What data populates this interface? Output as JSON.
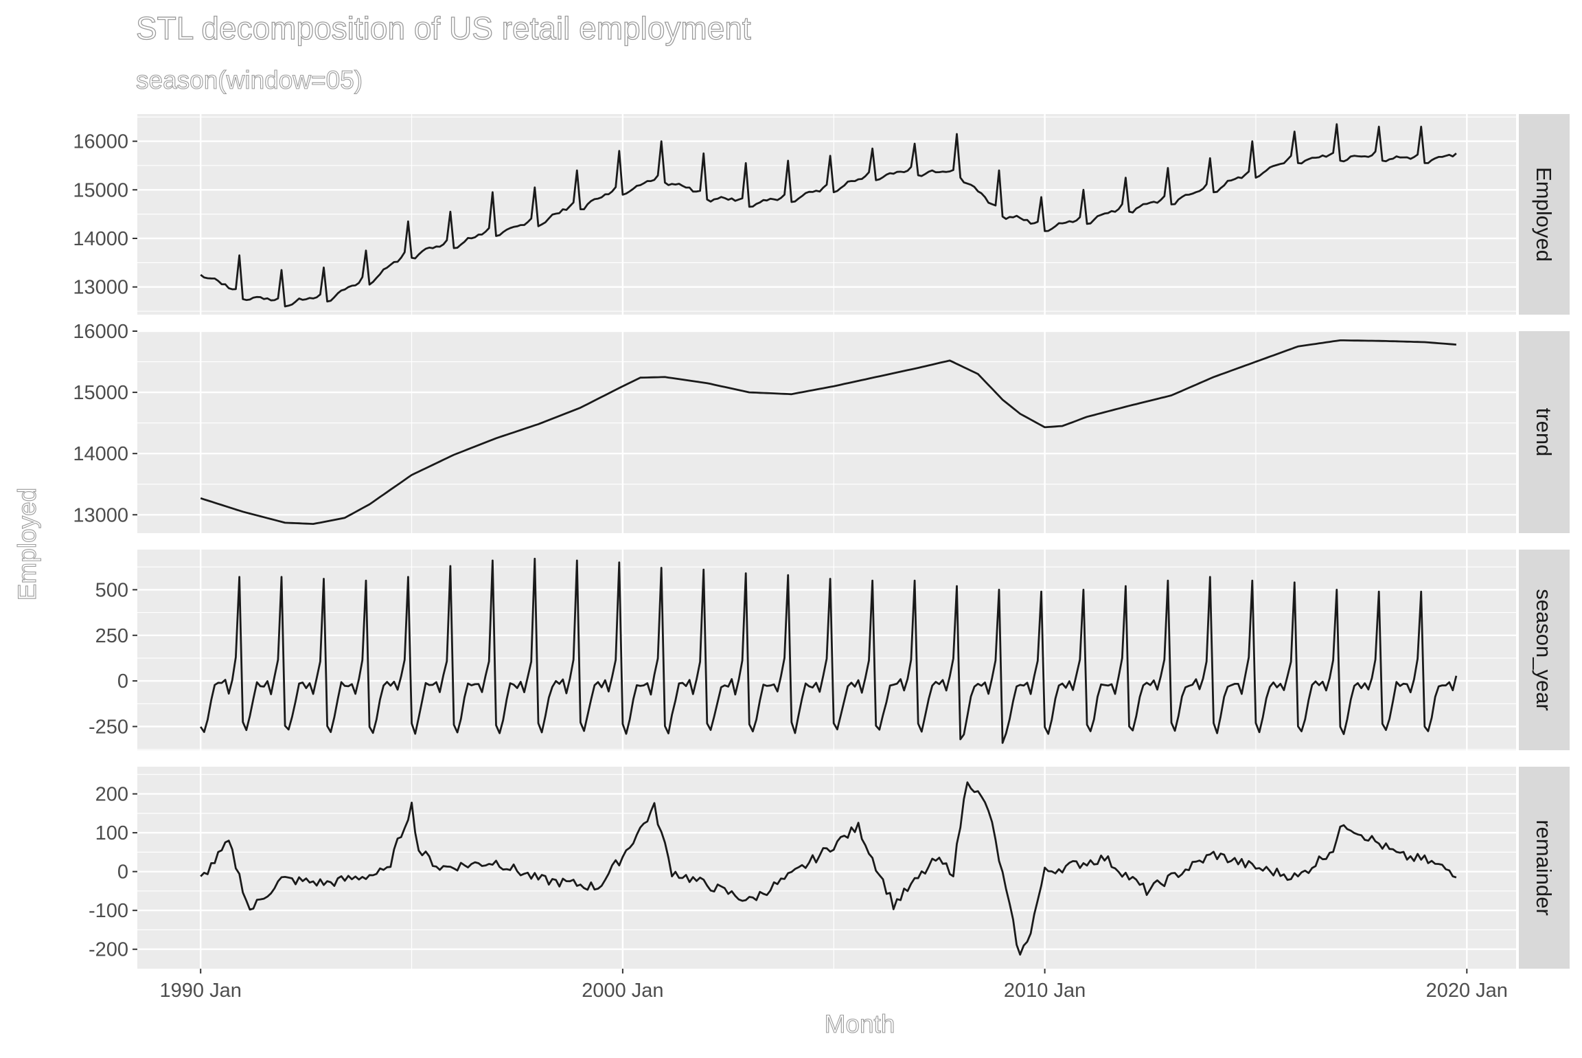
{
  "chart_data": {
    "type": "line",
    "title": "STL decomposition of US retail employment",
    "subtitle": "season(window=05)",
    "xlabel": "Month",
    "ylabel": "Employed",
    "x_ticks": [
      "1990 Jan",
      "2000 Jan",
      "2010 Jan",
      "2020 Jan"
    ],
    "x_range": [
      "1988-07",
      "2021-03"
    ],
    "grid": true,
    "panels": [
      {
        "strip": "Employed",
        "ylim": [
          12430,
          16560
        ],
        "yticks": [
          "13000",
          "14000",
          "15000",
          "16000"
        ],
        "yvalues": [
          13000,
          14000,
          15000,
          16000
        ],
        "series": [
          {
            "x": "1990-01",
            "y": 13250
          },
          {
            "x": "1990-12",
            "y": 13650
          },
          {
            "x": "1991-01",
            "y": 12750
          },
          {
            "x": "1991-12",
            "y": 13350
          },
          {
            "x": "1992-01",
            "y": 12600
          },
          {
            "x": "1992-12",
            "y": 13400
          },
          {
            "x": "1993-01",
            "y": 12700
          },
          {
            "x": "1993-12",
            "y": 13750
          },
          {
            "x": "1994-01",
            "y": 13050
          },
          {
            "x": "1994-12",
            "y": 14350
          },
          {
            "x": "1995-01",
            "y": 13600
          },
          {
            "x": "1995-12",
            "y": 14550
          },
          {
            "x": "1996-01",
            "y": 13800
          },
          {
            "x": "1996-12",
            "y": 14950
          },
          {
            "x": "1997-01",
            "y": 14050
          },
          {
            "x": "1997-12",
            "y": 15050
          },
          {
            "x": "1998-01",
            "y": 14250
          },
          {
            "x": "1998-12",
            "y": 15400
          },
          {
            "x": "1999-01",
            "y": 14600
          },
          {
            "x": "1999-12",
            "y": 15800
          },
          {
            "x": "2000-01",
            "y": 14900
          },
          {
            "x": "2000-12",
            "y": 16000
          },
          {
            "x": "2001-01",
            "y": 15150
          },
          {
            "x": "2001-12",
            "y": 15750
          },
          {
            "x": "2002-01",
            "y": 14800
          },
          {
            "x": "2002-12",
            "y": 15550
          },
          {
            "x": "2003-01",
            "y": 14650
          },
          {
            "x": "2003-12",
            "y": 15600
          },
          {
            "x": "2004-01",
            "y": 14750
          },
          {
            "x": "2004-12",
            "y": 15700
          },
          {
            "x": "2005-01",
            "y": 14950
          },
          {
            "x": "2005-12",
            "y": 15850
          },
          {
            "x": "2006-01",
            "y": 15200
          },
          {
            "x": "2006-12",
            "y": 15950
          },
          {
            "x": "2007-01",
            "y": 15300
          },
          {
            "x": "2007-12",
            "y": 16150
          },
          {
            "x": "2008-01",
            "y": 15250
          },
          {
            "x": "2008-12",
            "y": 15400
          },
          {
            "x": "2009-01",
            "y": 14450
          },
          {
            "x": "2009-12",
            "y": 14850
          },
          {
            "x": "2010-01",
            "y": 14150
          },
          {
            "x": "2010-12",
            "y": 15000
          },
          {
            "x": "2011-01",
            "y": 14300
          },
          {
            "x": "2011-12",
            "y": 15250
          },
          {
            "x": "2012-01",
            "y": 14550
          },
          {
            "x": "2012-12",
            "y": 15450
          },
          {
            "x": "2013-01",
            "y": 14700
          },
          {
            "x": "2013-12",
            "y": 15650
          },
          {
            "x": "2014-01",
            "y": 14950
          },
          {
            "x": "2014-12",
            "y": 16000
          },
          {
            "x": "2015-01",
            "y": 15250
          },
          {
            "x": "2015-12",
            "y": 16200
          },
          {
            "x": "2016-01",
            "y": 15550
          },
          {
            "x": "2016-12",
            "y": 16350
          },
          {
            "x": "2017-01",
            "y": 15600
          },
          {
            "x": "2017-12",
            "y": 16300
          },
          {
            "x": "2018-01",
            "y": 15600
          },
          {
            "x": "2018-12",
            "y": 16300
          },
          {
            "x": "2019-01",
            "y": 15550
          },
          {
            "x": "2019-10",
            "y": 15600
          }
        ]
      },
      {
        "strip": "trend",
        "ylim": [
          12700,
          16000
        ],
        "yticks": [
          "13000",
          "14000",
          "15000",
          "16000"
        ],
        "yvalues": [
          13000,
          14000,
          15000,
          16000
        ],
        "series": [
          {
            "x": "1990-01",
            "y": 13270
          },
          {
            "x": "1991-01",
            "y": 13050
          },
          {
            "x": "1992-01",
            "y": 12870
          },
          {
            "x": "1992-09",
            "y": 12850
          },
          {
            "x": "1993-06",
            "y": 12950
          },
          {
            "x": "1994-01",
            "y": 13170
          },
          {
            "x": "1995-01",
            "y": 13650
          },
          {
            "x": "1996-01",
            "y": 13980
          },
          {
            "x": "1997-01",
            "y": 14250
          },
          {
            "x": "1998-01",
            "y": 14480
          },
          {
            "x": "1999-01",
            "y": 14750
          },
          {
            "x": "2000-01",
            "y": 15100
          },
          {
            "x": "2000-06",
            "y": 15240
          },
          {
            "x": "2001-01",
            "y": 15250
          },
          {
            "x": "2002-01",
            "y": 15150
          },
          {
            "x": "2003-01",
            "y": 15000
          },
          {
            "x": "2004-01",
            "y": 14970
          },
          {
            "x": "2005-01",
            "y": 15100
          },
          {
            "x": "2006-01",
            "y": 15250
          },
          {
            "x": "2007-01",
            "y": 15400
          },
          {
            "x": "2007-10",
            "y": 15520
          },
          {
            "x": "2008-06",
            "y": 15300
          },
          {
            "x": "2009-01",
            "y": 14880
          },
          {
            "x": "2009-06",
            "y": 14650
          },
          {
            "x": "2010-01",
            "y": 14430
          },
          {
            "x": "2010-06",
            "y": 14450
          },
          {
            "x": "2011-01",
            "y": 14600
          },
          {
            "x": "2012-01",
            "y": 14780
          },
          {
            "x": "2013-01",
            "y": 14950
          },
          {
            "x": "2014-01",
            "y": 15250
          },
          {
            "x": "2015-01",
            "y": 15500
          },
          {
            "x": "2016-01",
            "y": 15750
          },
          {
            "x": "2017-01",
            "y": 15850
          },
          {
            "x": "2018-01",
            "y": 15840
          },
          {
            "x": "2019-01",
            "y": 15820
          },
          {
            "x": "2019-10",
            "y": 15780
          }
        ]
      },
      {
        "strip": "season_year",
        "ylim": [
          -380,
          720
        ],
        "yticks": [
          "-250",
          "0",
          "250",
          "500"
        ],
        "yvalues": [
          -250,
          0,
          250,
          500
        ],
        "peaks": [
          {
            "x": "1990-12",
            "y": 570
          },
          {
            "x": "1991-12",
            "y": 570
          },
          {
            "x": "1992-12",
            "y": 560
          },
          {
            "x": "1993-12",
            "y": 550
          },
          {
            "x": "1994-12",
            "y": 570
          },
          {
            "x": "1995-12",
            "y": 630
          },
          {
            "x": "1996-12",
            "y": 660
          },
          {
            "x": "1997-12",
            "y": 670
          },
          {
            "x": "1998-12",
            "y": 660
          },
          {
            "x": "1999-12",
            "y": 650
          },
          {
            "x": "2000-12",
            "y": 620
          },
          {
            "x": "2001-12",
            "y": 610
          },
          {
            "x": "2002-12",
            "y": 590
          },
          {
            "x": "2003-12",
            "y": 580
          },
          {
            "x": "2004-12",
            "y": 560
          },
          {
            "x": "2005-12",
            "y": 550
          },
          {
            "x": "2006-12",
            "y": 550
          },
          {
            "x": "2007-12",
            "y": 520
          },
          {
            "x": "2008-12",
            "y": 500
          },
          {
            "x": "2009-12",
            "y": 490
          },
          {
            "x": "2010-12",
            "y": 500
          },
          {
            "x": "2011-12",
            "y": 520
          },
          {
            "x": "2012-12",
            "y": 550
          },
          {
            "x": "2013-12",
            "y": 570
          },
          {
            "x": "2014-12",
            "y": 550
          },
          {
            "x": "2015-12",
            "y": 540
          },
          {
            "x": "2016-12",
            "y": 500
          },
          {
            "x": "2017-12",
            "y": 490
          },
          {
            "x": "2018-12",
            "y": 490
          }
        ],
        "troughs": [
          {
            "x": "1990-02",
            "y": -280
          },
          {
            "x": "1995-02",
            "y": -290
          },
          {
            "x": "2000-02",
            "y": -290
          },
          {
            "x": "2008-01",
            "y": -320
          },
          {
            "x": "2009-01",
            "y": -340
          },
          {
            "x": "2019-01",
            "y": -250
          }
        ]
      },
      {
        "strip": "remainder",
        "ylim": [
          -250,
          270
        ],
        "yticks": [
          "-200",
          "-100",
          "0",
          "100",
          "200"
        ],
        "yvalues": [
          -200,
          -100,
          0,
          100,
          200
        ],
        "series": [
          {
            "x": "1990-01",
            "y": -20
          },
          {
            "x": "1990-09",
            "y": 75
          },
          {
            "x": "1991-03",
            "y": -100
          },
          {
            "x": "1991-12",
            "y": -20
          },
          {
            "x": "1993-01",
            "y": -30
          },
          {
            "x": "1994-06",
            "y": 0
          },
          {
            "x": "1995-01",
            "y": 170
          },
          {
            "x": "1995-03",
            "y": 55
          },
          {
            "x": "1995-09",
            "y": 10
          },
          {
            "x": "1997-01",
            "y": 25
          },
          {
            "x": "1998-01",
            "y": -20
          },
          {
            "x": "1999-06",
            "y": -40
          },
          {
            "x": "2000-01",
            "y": 40
          },
          {
            "x": "2000-10",
            "y": 165
          },
          {
            "x": "2001-03",
            "y": 0
          },
          {
            "x": "2003-01",
            "y": -75
          },
          {
            "x": "2004-01",
            "y": -10
          },
          {
            "x": "2005-08",
            "y": 115
          },
          {
            "x": "2006-06",
            "y": -85
          },
          {
            "x": "2007-06",
            "y": 30
          },
          {
            "x": "2007-11",
            "y": 0
          },
          {
            "x": "2008-03",
            "y": 240
          },
          {
            "x": "2008-09",
            "y": 160
          },
          {
            "x": "2009-06",
            "y": -220
          },
          {
            "x": "2009-09",
            "y": -150
          },
          {
            "x": "2010-01",
            "y": 0
          },
          {
            "x": "2011-06",
            "y": 35
          },
          {
            "x": "2012-06",
            "y": -50
          },
          {
            "x": "2014-01",
            "y": 45
          },
          {
            "x": "2015-01",
            "y": 10
          },
          {
            "x": "2016-01",
            "y": -15
          },
          {
            "x": "2016-11",
            "y": 60
          },
          {
            "x": "2017-02",
            "y": 125
          },
          {
            "x": "2018-06",
            "y": 40
          },
          {
            "x": "2019-01",
            "y": 30
          },
          {
            "x": "2019-10",
            "y": -5
          }
        ]
      }
    ]
  }
}
